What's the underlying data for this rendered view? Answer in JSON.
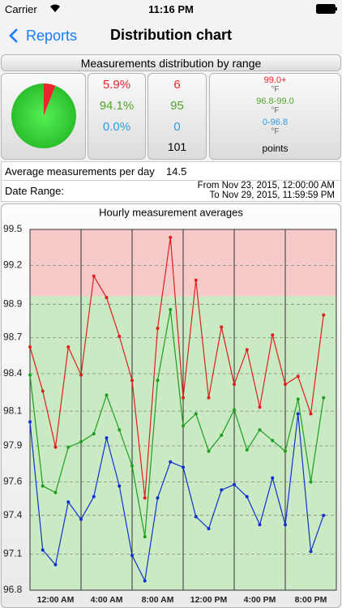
{
  "status_bar": {
    "carrier": "Carrier",
    "time": "11:16 PM"
  },
  "nav": {
    "back": "Reports",
    "title": "Distribution chart"
  },
  "distribution": {
    "title": "Measurements distribution by range",
    "ranges": [
      {
        "percent": 5.9,
        "percent_label": "5.9%",
        "count": 6,
        "label": "99.0+",
        "unit": "°F",
        "color": "#e8262b"
      },
      {
        "percent": 94.1,
        "percent_label": "94.1%",
        "count": 95,
        "label": "96.8-99.0",
        "unit": "°F",
        "color": "#52a62a"
      },
      {
        "percent": 0.0,
        "percent_label": "0.0%",
        "count": 0,
        "label": "0-96.8",
        "unit": "°F",
        "color": "#2e9de0"
      }
    ],
    "total": 101,
    "total_label": "points"
  },
  "average": {
    "label": "Average measurements per day",
    "value": 14.5
  },
  "date_range": {
    "label": "Date Range:",
    "from": "From Nov 23, 2015, 12:00:00 AM",
    "to": "To Nov 29, 2015, 11:59:59 PM"
  },
  "chart_data": {
    "type": "line",
    "title": "Hourly measurement averages",
    "x": [
      0,
      1,
      2,
      3,
      4,
      5,
      6,
      7,
      8,
      9,
      10,
      11,
      12,
      13,
      14,
      15,
      16,
      17,
      18,
      19,
      20,
      21,
      22,
      23
    ],
    "xlim": [
      0,
      24
    ],
    "xticks": [
      0,
      4,
      8,
      12,
      16,
      20,
      24
    ],
    "xtick_labels": [
      "12:00 AM",
      "4:00 AM",
      "8:00 AM",
      "12:00 PM",
      "4:00 PM",
      "8:00 PM"
    ],
    "ylim": [
      96.8,
      99.5
    ],
    "yticks": [
      {
        "value": 96.8,
        "label": "96.8"
      },
      {
        "value": 97.07,
        "label": "97.1"
      },
      {
        "value": 97.36,
        "label": "97.4"
      },
      {
        "value": 97.61,
        "label": "97.6"
      },
      {
        "value": 97.88,
        "label": "97.9"
      },
      {
        "value": 98.14,
        "label": "98.1"
      },
      {
        "value": 98.42,
        "label": "98.4"
      },
      {
        "value": 98.69,
        "label": "98.7"
      },
      {
        "value": 98.94,
        "label": "98.9"
      },
      {
        "value": 99.23,
        "label": "99.2"
      },
      {
        "value": 99.5,
        "label": "99.5"
      }
    ],
    "grid": true,
    "bands": [
      {
        "from": 99.0,
        "to": 99.5,
        "color": "#f7caca"
      },
      {
        "from": 96.8,
        "to": 99.0,
        "color": "#c9eac3"
      }
    ],
    "series": [
      {
        "color": "#e01e1e",
        "values": [
          98.62,
          98.29,
          97.87,
          98.62,
          98.41,
          99.15,
          98.99,
          98.7,
          98.37,
          97.49,
          98.76,
          99.44,
          98.24,
          99.12,
          98.24,
          98.77,
          98.34,
          98.6,
          98.17,
          98.71,
          98.34,
          98.4,
          98.12,
          98.86
        ]
      },
      {
        "color": "#1e9e1e",
        "values": [
          98.41,
          97.58,
          97.53,
          97.87,
          97.91,
          97.97,
          98.26,
          98.0,
          97.73,
          97.2,
          98.37,
          98.9,
          98.03,
          98.12,
          97.84,
          97.96,
          98.15,
          97.85,
          98.0,
          97.92,
          97.84,
          98.23,
          97.61,
          98.24
        ]
      },
      {
        "color": "#1230d0",
        "values": [
          98.06,
          97.1,
          96.99,
          97.46,
          97.33,
          97.5,
          97.94,
          97.58,
          97.06,
          96.87,
          97.49,
          97.76,
          97.72,
          97.35,
          97.26,
          97.55,
          97.59,
          97.5,
          97.29,
          97.64,
          97.29,
          98.12,
          97.09,
          97.36
        ]
      }
    ]
  }
}
